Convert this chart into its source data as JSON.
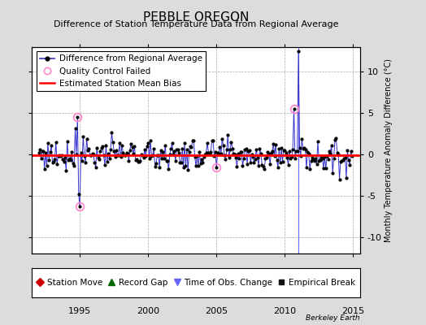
{
  "title": "PEBBLE OREGON",
  "subtitle": "Difference of Station Temperature Data from Regional Average",
  "ylabel_right": "Monthly Temperature Anomaly Difference (°C)",
  "xlim": [
    1991.5,
    2015.5
  ],
  "ylim": [
    -12,
    13
  ],
  "yticks": [
    -10,
    -5,
    0,
    5,
    10
  ],
  "xticks": [
    1995,
    2000,
    2005,
    2010,
    2015
  ],
  "background_color": "#dcdcdc",
  "plot_bg_color": "#ffffff",
  "grid_color": "#aaaaaa",
  "line_color": "#3333cc",
  "marker_color": "#000000",
  "bias_color": "#ff0000",
  "bias_value": -0.05,
  "qc_fail_color": "#ff88cc",
  "tobs_color": "#6666ff",
  "title_fontsize": 11,
  "subtitle_fontsize": 8,
  "tick_fontsize": 8,
  "legend_fontsize": 7.5,
  "ylabel_fontsize": 7
}
